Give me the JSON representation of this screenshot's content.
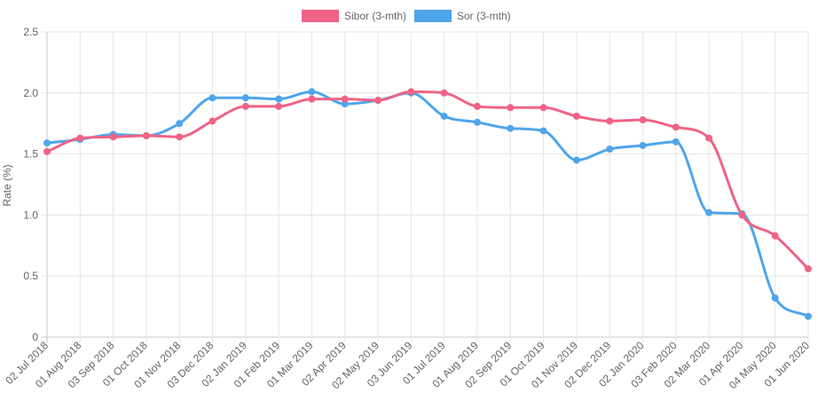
{
  "chart_data": {
    "type": "line",
    "title": "",
    "xlabel": "",
    "ylabel": "Rate (%)",
    "ylim": [
      0,
      2.5
    ],
    "yticks": [
      "0",
      "0.5",
      "1.0",
      "1.5",
      "2.0",
      "2.5"
    ],
    "legend_position": "top",
    "grid": true,
    "categories": [
      "02 Jul 2018",
      "01 Aug 2018",
      "03 Sep 2018",
      "01 Oct 2018",
      "01 Nov 2018",
      "03 Dec 2018",
      "02 Jan 2019",
      "01 Feb 2019",
      "01 Mar 2019",
      "02 Apr 2019",
      "02 May 2019",
      "03 Jun 2019",
      "01 Jul 2019",
      "01 Aug 2019",
      "02 Sep 2019",
      "01 Oct 2019",
      "01 Nov 2019",
      "02 Dec 2019",
      "02 Jan 2020",
      "03 Feb 2020",
      "02 Mar 2020",
      "01 Apr 2020",
      "04 May 2020",
      "01 Jun 2020"
    ],
    "series": [
      {
        "name": "Sibor (3-mth)",
        "color": "#f06386",
        "values": [
          1.52,
          1.63,
          1.64,
          1.65,
          1.64,
          1.77,
          1.89,
          1.89,
          1.95,
          1.95,
          1.94,
          2.01,
          2.0,
          1.89,
          1.88,
          1.88,
          1.81,
          1.77,
          1.78,
          1.72,
          1.63,
          1.0,
          0.83,
          0.56
        ]
      },
      {
        "name": "Sor (3-mth)",
        "color": "#4fa5eb",
        "values": [
          1.59,
          1.62,
          1.66,
          1.65,
          1.75,
          1.96,
          1.96,
          1.95,
          2.01,
          1.91,
          1.94,
          2.0,
          1.81,
          1.76,
          1.71,
          1.69,
          1.45,
          1.54,
          1.57,
          1.6,
          1.02,
          1.01,
          0.32,
          0.17
        ]
      }
    ]
  }
}
